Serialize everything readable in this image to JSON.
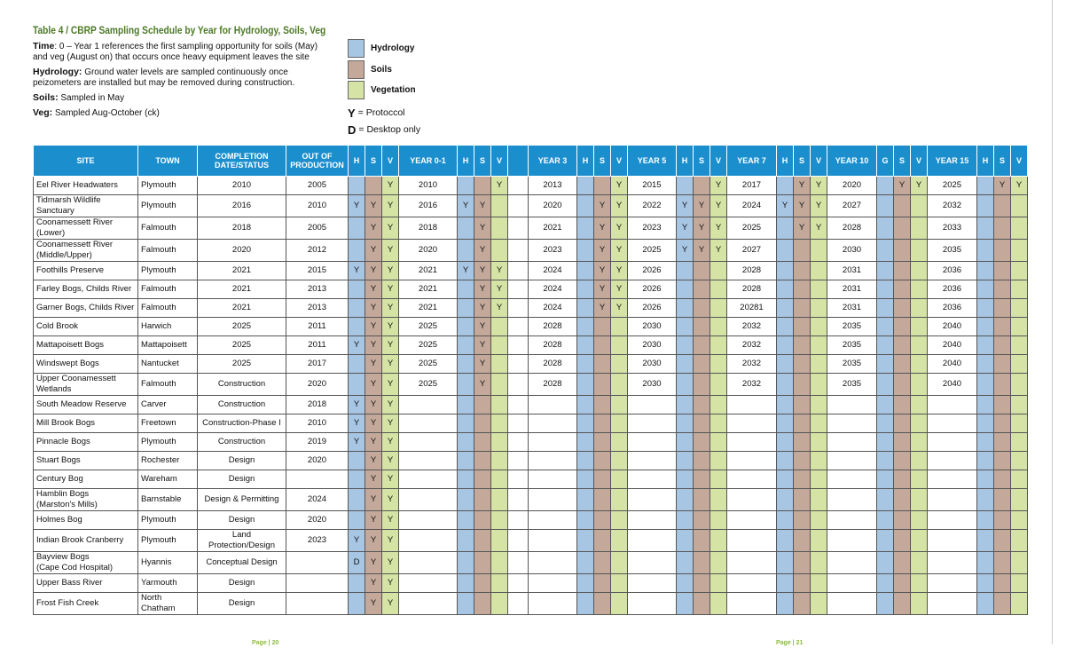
{
  "header": {
    "title": "Table 4 / CBRP Sampling Schedule by Year for Hydrology, Soils, Veg",
    "notes": [
      {
        "label": "Time",
        "text": ": 0 – Year 1 references the first sampling opportunity for soils (May) and veg (August on) that occurs once heavy equipment leaves the site"
      },
      {
        "label": "Hydrology:",
        "text": " Ground water levels are sampled continuously once peizometers are installed but may be removed during construction."
      },
      {
        "label": "Soils:",
        "text": " Sampled in May"
      },
      {
        "label": "Veg:",
        "text": " Sampled Aug-October (ck)"
      }
    ]
  },
  "legend": {
    "swatches": [
      {
        "label": "Hydrology",
        "color": "#a7c6e4"
      },
      {
        "label": "Soils",
        "color": "#c4a99a"
      },
      {
        "label": "Vegetation",
        "color": "#d5e3a4"
      }
    ],
    "codes": [
      {
        "code": "Y",
        "text": "= Protoccol"
      },
      {
        "code": "D",
        "text": "= Desktop only"
      }
    ]
  },
  "table": {
    "headers": [
      "SITE",
      "TOWN",
      "COMPLETION DATE/STATUS",
      "OUT OF PRODUCTION",
      "H",
      "S",
      "V",
      "YEAR 0-1",
      "H",
      "S",
      "V",
      "YEAR 3",
      "H",
      "S",
      "V",
      "YEAR 5",
      "H",
      "S",
      "V",
      "YEAR 7",
      "H",
      "S",
      "V",
      "YEAR 10",
      "G",
      "S",
      "V",
      "YEAR 15",
      "H",
      "S",
      "V"
    ],
    "rows": [
      [
        "Eel River Headwaters",
        "Plymouth",
        "2010",
        "2005",
        null,
        null,
        "Y",
        "2010",
        null,
        null,
        "Y",
        "2013",
        null,
        null,
        "Y",
        "2015",
        null,
        null,
        "Y",
        "2017",
        null,
        "Y",
        "Y",
        "2020",
        null,
        "Y",
        "Y",
        "2025",
        null,
        "Y",
        "Y"
      ],
      [
        "Tidmarsh Wildlife Sanctuary",
        "Plymouth",
        "2016",
        "2010",
        "Y",
        "Y",
        "Y",
        "2016",
        "Y",
        "Y",
        null,
        "2020",
        null,
        "Y",
        "Y",
        "2022",
        "Y",
        "Y",
        "Y",
        "2024",
        "Y",
        "Y",
        "Y",
        "2027",
        null,
        null,
        null,
        "2032",
        null,
        null,
        null
      ],
      [
        "Coonamessett River (Lower)",
        "Falmouth",
        "2018",
        "2005",
        null,
        "Y",
        "Y",
        "2018",
        null,
        "Y",
        null,
        "2021",
        null,
        "Y",
        "Y",
        "2023",
        "Y",
        "Y",
        "Y",
        "2025",
        null,
        "Y",
        "Y",
        "2028",
        null,
        null,
        null,
        "2033",
        null,
        null,
        null
      ],
      [
        "Coonamessett River\n(Middle/Upper)",
        "Falmouth",
        "2020",
        "2012",
        null,
        "Y",
        "Y",
        "2020",
        null,
        "Y",
        null,
        "2023",
        null,
        "Y",
        "Y",
        "2025",
        "Y",
        "Y",
        "Y",
        "2027",
        null,
        null,
        null,
        "2030",
        null,
        null,
        null,
        "2035",
        null,
        null,
        null
      ],
      [
        "Foothills Preserve",
        "Plymouth",
        "2021",
        "2015",
        "Y",
        "Y",
        "Y",
        "2021",
        "Y",
        "Y",
        "Y",
        "2024",
        null,
        "Y",
        "Y",
        "2026",
        null,
        null,
        null,
        "2028",
        null,
        null,
        null,
        "2031",
        null,
        null,
        null,
        "2036",
        null,
        null,
        null
      ],
      [
        "Farley Bogs, Childs River",
        "Falmouth",
        "2021",
        "2013",
        null,
        "Y",
        "Y",
        "2021",
        null,
        "Y",
        "Y",
        "2024",
        null,
        "Y",
        "Y",
        "2026",
        null,
        null,
        null,
        "2028",
        null,
        null,
        null,
        "2031",
        null,
        null,
        null,
        "2036",
        null,
        null,
        null
      ],
      [
        "Garner Bogs, Childs River",
        "Falmouth",
        "2021",
        "2013",
        null,
        "Y",
        "Y",
        "2021",
        null,
        "Y",
        "Y",
        "2024",
        null,
        "Y",
        "Y",
        "2026",
        null,
        null,
        null,
        "20281",
        null,
        null,
        null,
        "2031",
        null,
        null,
        null,
        "2036",
        null,
        null,
        null
      ],
      [
        "Cold Brook",
        "Harwich",
        "2025",
        "2011",
        null,
        "Y",
        "Y",
        "2025",
        null,
        "Y",
        null,
        "2028",
        null,
        null,
        null,
        "2030",
        null,
        null,
        null,
        "2032",
        null,
        null,
        null,
        "2035",
        null,
        null,
        null,
        "2040",
        null,
        null,
        null
      ],
      [
        "Mattapoisett Bogs",
        "Mattapoisett",
        "2025",
        "2011",
        "Y",
        "Y",
        "Y",
        "2025",
        null,
        "Y",
        null,
        "2028",
        null,
        null,
        null,
        "2030",
        null,
        null,
        null,
        "2032",
        null,
        null,
        null,
        "2035",
        null,
        null,
        null,
        "2040",
        null,
        null,
        null
      ],
      [
        "Windswept Bogs",
        "Nantucket",
        "2025",
        "2017",
        null,
        "Y",
        "Y",
        "2025",
        null,
        "Y",
        null,
        "2028",
        null,
        null,
        null,
        "2030",
        null,
        null,
        null,
        "2032",
        null,
        null,
        null,
        "2035",
        null,
        null,
        null,
        "2040",
        null,
        null,
        null
      ],
      [
        "Upper Coonamessett\nWetlands",
        "Falmouth",
        "Construction",
        "2020",
        null,
        "Y",
        "Y",
        "2025",
        null,
        "Y",
        null,
        "2028",
        null,
        null,
        null,
        "2030",
        null,
        null,
        null,
        "2032",
        null,
        null,
        null,
        "2035",
        null,
        null,
        null,
        "2040",
        null,
        null,
        null
      ],
      [
        "South Meadow Reserve",
        "Carver",
        "Construction",
        "2018",
        "Y",
        "Y",
        "Y",
        null,
        null,
        null,
        null,
        null,
        null,
        null,
        null,
        null,
        null,
        null,
        null,
        null,
        null,
        null,
        null,
        null,
        null,
        null,
        null,
        null,
        null,
        null,
        null
      ],
      [
        "Mill Brook Bogs",
        "Freetown",
        "Construction-Phase I",
        "2010",
        "Y",
        "Y",
        "Y",
        null,
        null,
        null,
        null,
        null,
        null,
        null,
        null,
        null,
        null,
        null,
        null,
        null,
        null,
        null,
        null,
        null,
        null,
        null,
        null,
        null,
        null,
        null,
        null
      ],
      [
        "Pinnacle Bogs",
        "Plymouth",
        "Construction",
        "2019",
        "Y",
        "Y",
        "Y",
        null,
        null,
        null,
        null,
        null,
        null,
        null,
        null,
        null,
        null,
        null,
        null,
        null,
        null,
        null,
        null,
        null,
        null,
        null,
        null,
        null,
        null,
        null,
        null
      ],
      [
        "Stuart Bogs",
        "Rochester",
        "Design",
        "2020",
        null,
        "Y",
        "Y",
        null,
        null,
        null,
        null,
        null,
        null,
        null,
        null,
        null,
        null,
        null,
        null,
        null,
        null,
        null,
        null,
        null,
        null,
        null,
        null,
        null,
        null,
        null,
        null
      ],
      [
        "Century Bog",
        "Wareham",
        "Design",
        null,
        null,
        "Y",
        "Y",
        null,
        null,
        null,
        null,
        null,
        null,
        null,
        null,
        null,
        null,
        null,
        null,
        null,
        null,
        null,
        null,
        null,
        null,
        null,
        null,
        null,
        null,
        null,
        null
      ],
      [
        "Hamblin Bogs\n(Marston's Mills)",
        "Barnstable",
        "Design & Permitting",
        "2024",
        null,
        "Y",
        "Y",
        null,
        null,
        null,
        null,
        null,
        null,
        null,
        null,
        null,
        null,
        null,
        null,
        null,
        null,
        null,
        null,
        null,
        null,
        null,
        null,
        null,
        null,
        null,
        null
      ],
      [
        "Holmes Bog",
        "Plymouth",
        "Design",
        "2020",
        null,
        "Y",
        "Y",
        null,
        null,
        null,
        null,
        null,
        null,
        null,
        null,
        null,
        null,
        null,
        null,
        null,
        null,
        null,
        null,
        null,
        null,
        null,
        null,
        null,
        null,
        null,
        null
      ],
      [
        "Indian Brook Cranberry",
        "Plymouth",
        "Land Protection/Design",
        "2023",
        "Y",
        "Y",
        "Y",
        null,
        null,
        null,
        null,
        null,
        null,
        null,
        null,
        null,
        null,
        null,
        null,
        null,
        null,
        null,
        null,
        null,
        null,
        null,
        null,
        null,
        null,
        null,
        null
      ],
      [
        "Bayview Bogs\n(Cape Cod Hospital)",
        "Hyannis",
        "Conceptual Design",
        null,
        "D",
        "Y",
        "Y",
        null,
        null,
        null,
        null,
        null,
        null,
        null,
        null,
        null,
        null,
        null,
        null,
        null,
        null,
        null,
        null,
        null,
        null,
        null,
        null,
        null,
        null,
        null,
        null
      ],
      [
        "Upper Bass River",
        "Yarmouth",
        "Design",
        null,
        null,
        "Y",
        "Y",
        null,
        null,
        null,
        null,
        null,
        null,
        null,
        null,
        null,
        null,
        null,
        null,
        null,
        null,
        null,
        null,
        null,
        null,
        null,
        null,
        null,
        null,
        null,
        null
      ],
      [
        "Frost Fish Creek",
        "North Chatham",
        "Design",
        null,
        null,
        "Y",
        "Y",
        null,
        null,
        null,
        null,
        null,
        null,
        null,
        null,
        null,
        null,
        null,
        null,
        null,
        null,
        null,
        null,
        null,
        null,
        null,
        null,
        null,
        null,
        null,
        null
      ]
    ]
  },
  "footer": {
    "pages": [
      "Page | 20",
      "Page | 21"
    ]
  }
}
